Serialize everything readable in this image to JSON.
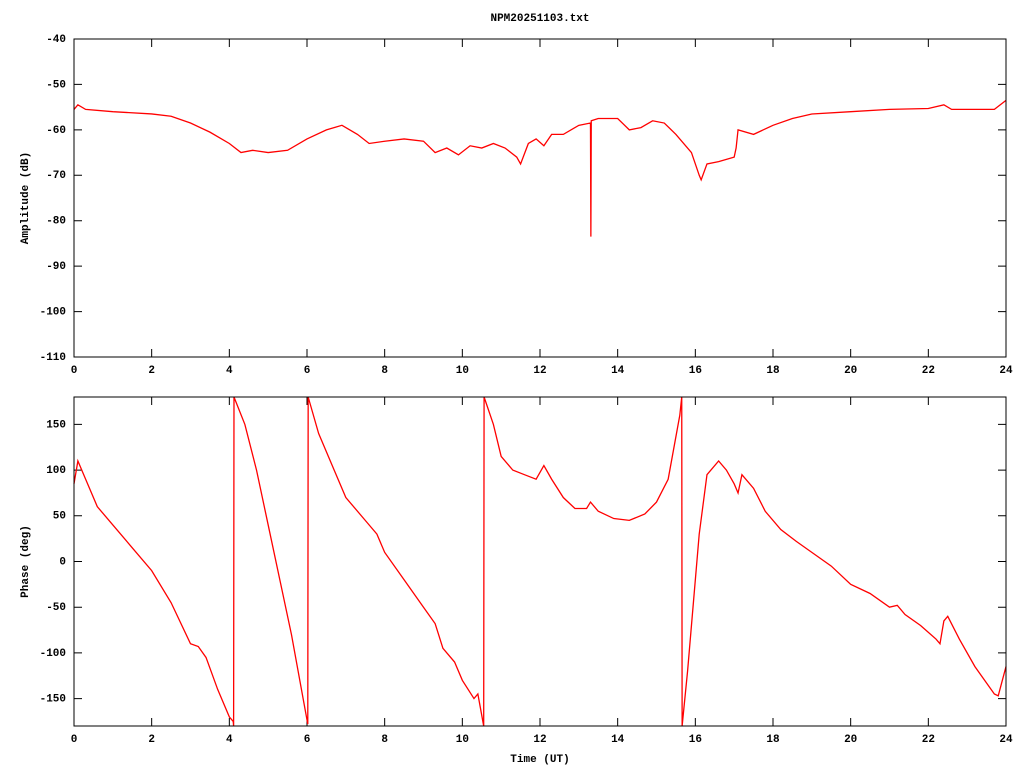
{
  "chart_data": [
    {
      "type": "line",
      "title": "NPM20251103.txt",
      "ylabel": "Amplitude (dB)",
      "xlim": [
        0,
        24
      ],
      "xticks": [
        0,
        2,
        4,
        6,
        8,
        10,
        12,
        14,
        16,
        18,
        20,
        22,
        24
      ],
      "ylim": [
        -110,
        -40
      ],
      "yticks": [
        -110,
        -100,
        -90,
        -80,
        -70,
        -60,
        -50,
        -40
      ],
      "x": [
        0,
        0.1,
        0.3,
        1,
        2,
        2.5,
        3,
        3.5,
        4,
        4.3,
        4.6,
        5,
        5.5,
        6,
        6.5,
        6.9,
        7.3,
        7.6,
        8,
        8.5,
        9,
        9.3,
        9.6,
        9.9,
        10.2,
        10.5,
        10.8,
        11.1,
        11.4,
        11.5,
        11.7,
        11.9,
        12.1,
        12.3,
        12.6,
        13,
        13.3,
        13.31,
        13.32,
        13.5,
        14,
        14.3,
        14.6,
        14.9,
        15.2,
        15.5,
        15.9,
        16.1,
        16.15,
        16.3,
        16.6,
        17,
        17.05,
        17.1,
        17.5,
        18,
        18.5,
        19,
        20,
        21,
        22,
        22.4,
        22.6,
        23,
        23.7,
        24
      ],
      "series": [
        {
          "color": "#ff0000",
          "values": [
            -55.5,
            -54.5,
            -55.5,
            -56,
            -56.5,
            -57,
            -58.5,
            -60.5,
            -63,
            -65,
            -64.5,
            -65,
            -64.5,
            -62,
            -60,
            -59,
            -61,
            -63,
            -62.5,
            -62,
            -62.5,
            -65,
            -64,
            -65.5,
            -63.5,
            -64,
            -63,
            -64,
            -66,
            -67.5,
            -63,
            -62,
            -63.5,
            -61,
            -61,
            -59,
            -58.5,
            -83.5,
            -58,
            -57.5,
            -57.5,
            -60,
            -59.5,
            -58,
            -58.5,
            -61,
            -65,
            -70,
            -71,
            -67.5,
            -67,
            -66,
            -64,
            -60,
            -61,
            -59,
            -57.5,
            -56.5,
            -56,
            -55.5,
            -55.3,
            -54.5,
            -55.5,
            -55.5,
            -55.5,
            -53.5
          ]
        }
      ]
    },
    {
      "type": "line",
      "xlabel": "Time (UT)",
      "ylabel": "Phase (deg)",
      "xlim": [
        0,
        24
      ],
      "xticks": [
        0,
        2,
        4,
        6,
        8,
        10,
        12,
        14,
        16,
        18,
        20,
        22,
        24
      ],
      "ylim": [
        -180,
        180
      ],
      "yticks": [
        -150,
        -100,
        -50,
        0,
        50,
        100,
        150
      ],
      "x": [
        0,
        0.1,
        0.3,
        0.6,
        1,
        1.5,
        2,
        2.5,
        3,
        3.2,
        3.4,
        3.7,
        4,
        4.1,
        4.11,
        4.12,
        4.4,
        4.7,
        5,
        5.3,
        5.6,
        5.9,
        6.02,
        6.03,
        6.3,
        6.7,
        7,
        7.5,
        7.8,
        8,
        8.5,
        9,
        9.3,
        9.5,
        9.8,
        10,
        10.3,
        10.4,
        10.55,
        10.56,
        10.8,
        11,
        11.3,
        11.6,
        11.9,
        12.1,
        12.3,
        12.6,
        12.9,
        13.2,
        13.3,
        13.5,
        13.9,
        14.3,
        14.7,
        15,
        15.3,
        15.6,
        15.65,
        15.66,
        15.8,
        16.1,
        16.3,
        16.6,
        16.8,
        17,
        17.1,
        17.2,
        17.5,
        17.8,
        18.2,
        18.6,
        19,
        19.5,
        20,
        20.5,
        21,
        21.2,
        21.4,
        21.8,
        22.2,
        22.3,
        22.4,
        22.5,
        22.8,
        23.2,
        23.7,
        23.8,
        24
      ],
      "series": [
        {
          "color": "#ff0000",
          "values": [
            85,
            110,
            90,
            60,
            40,
            15,
            -10,
            -45,
            -90,
            -93,
            -105,
            -140,
            -170,
            -175,
            -180,
            180,
            150,
            100,
            40,
            -20,
            -80,
            -150,
            -178,
            180,
            140,
            100,
            70,
            45,
            30,
            10,
            -20,
            -50,
            -68,
            -95,
            -110,
            -130,
            -150,
            -145,
            -180,
            180,
            150,
            115,
            100,
            95,
            90,
            105,
            90,
            70,
            58,
            58,
            65,
            55,
            47,
            45,
            52,
            65,
            90,
            160,
            180,
            -180,
            -120,
            30,
            95,
            110,
            100,
            85,
            75,
            95,
            80,
            55,
            35,
            22,
            10,
            -5,
            -25,
            -35,
            -50,
            -48,
            -58,
            -70,
            -85,
            -90,
            -65,
            -60,
            -85,
            -115,
            -145,
            -147,
            -115
          ]
        }
      ]
    }
  ]
}
